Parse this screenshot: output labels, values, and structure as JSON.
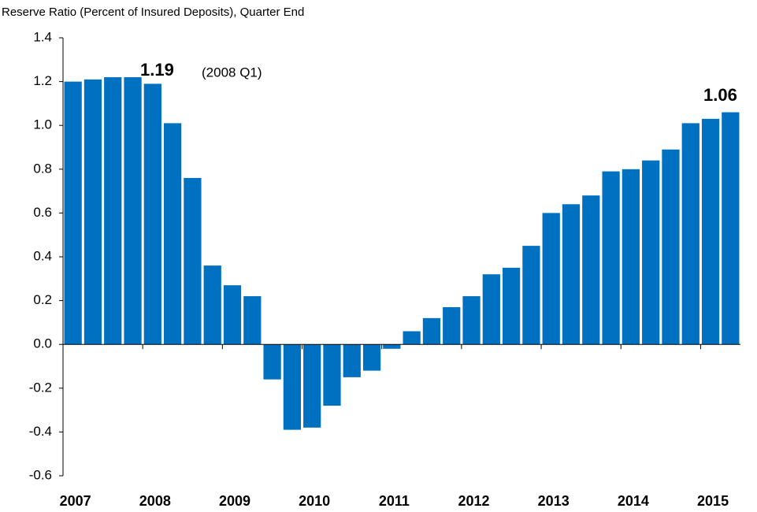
{
  "chart_data": {
    "type": "bar",
    "title": "Reserve Ratio (Percent of Insured Deposits), Quarter End",
    "categories": [
      "2007",
      null,
      null,
      null,
      "2008",
      null,
      null,
      null,
      "2009",
      null,
      null,
      null,
      "2010",
      null,
      null,
      null,
      "2011",
      null,
      null,
      null,
      "2012",
      null,
      null,
      null,
      "2013",
      null,
      null,
      null,
      "2014",
      null,
      null,
      null,
      "2015",
      null
    ],
    "values": [
      1.2,
      1.21,
      1.22,
      1.22,
      1.19,
      1.01,
      0.76,
      0.36,
      0.27,
      0.22,
      -0.16,
      -0.39,
      -0.38,
      -0.28,
      -0.15,
      -0.12,
      -0.02,
      0.06,
      0.12,
      0.17,
      0.22,
      0.32,
      0.35,
      0.45,
      0.6,
      0.64,
      0.68,
      0.79,
      0.8,
      0.84,
      0.89,
      1.01,
      1.03,
      1.06
    ],
    "color": "#0070c0",
    "ylim": [
      -0.6,
      1.4
    ],
    "yticks": [
      -0.6,
      -0.4,
      -0.2,
      {
        "value": 0,
        "label": "0.0"
      },
      0.2,
      0.4,
      0.6,
      0.8,
      {
        "value": 1,
        "label": "1.0"
      },
      1.2,
      1.4
    ],
    "annotations": [
      "1.19",
      "(2008 Q1)",
      "1.06"
    ],
    "grid": false
  }
}
